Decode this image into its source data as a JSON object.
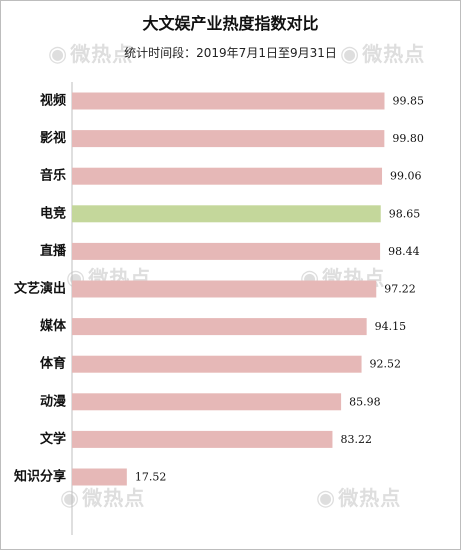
{
  "watermark": "微热点",
  "chart_data": {
    "type": "bar",
    "orientation": "horizontal",
    "title": "大文娱产业热度指数对比",
    "subtitle": "统计时间段：2019年7月1日至9月31日",
    "categories": [
      "视频",
      "影视",
      "音乐",
      "电竞",
      "直播",
      "文艺演出",
      "媒体",
      "体育",
      "动漫",
      "文学",
      "知识分享"
    ],
    "values": [
      99.85,
      99.8,
      99.06,
      98.65,
      98.44,
      97.22,
      94.15,
      92.52,
      85.98,
      83.22,
      17.52
    ],
    "value_labels": [
      "99.85",
      "99.80",
      "99.06",
      "98.65",
      "98.44",
      "97.22",
      "94.15",
      "92.52",
      "85.98",
      "83.22",
      "17.52"
    ],
    "highlight_category": "电竞",
    "colors": {
      "bar": "#e6b8b7",
      "highlight": "#c4d79b",
      "axis": "#bfbfbf"
    },
    "xlim": [
      0,
      100
    ],
    "grid": false,
    "legend": "none"
  }
}
